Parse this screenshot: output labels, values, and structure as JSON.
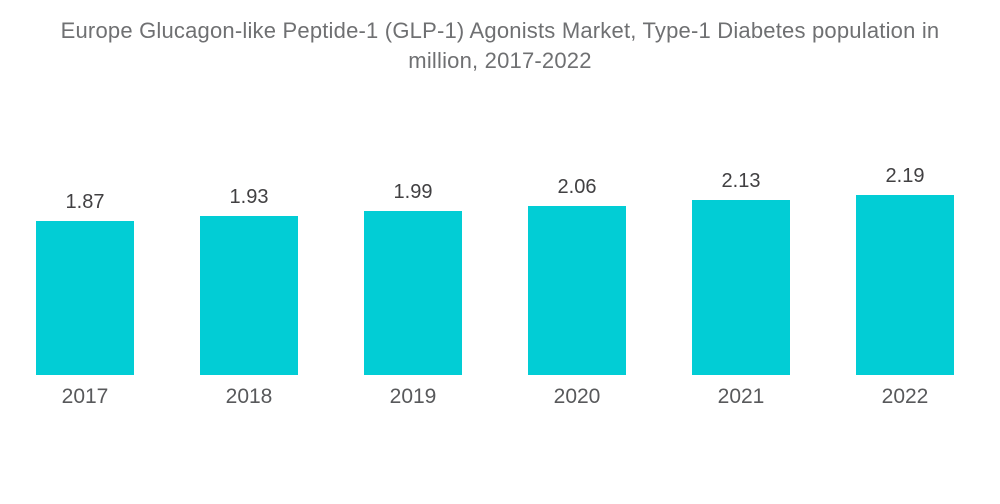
{
  "chart_data": {
    "type": "bar",
    "title": "Europe Glucagon-like Peptide-1 (GLP-1) Agonists Market, Type-1 Diabetes population in million, 2017-2022",
    "categories": [
      "2017",
      "2018",
      "2019",
      "2020",
      "2021",
      "2022"
    ],
    "values": [
      1.87,
      1.93,
      1.99,
      2.06,
      2.13,
      2.19
    ],
    "data_labels": [
      "1.87",
      "1.93",
      "1.99",
      "2.06",
      "2.13",
      "2.19"
    ],
    "xlabel": "",
    "ylabel": "",
    "grid": false,
    "legend": "none",
    "axes_visible": false,
    "colors": {
      "bar": "#02CDD5",
      "title_text": "#6F7072",
      "value_label_text": "#414042",
      "category_label_text": "#58595B",
      "background": "#FFFFFF"
    }
  }
}
